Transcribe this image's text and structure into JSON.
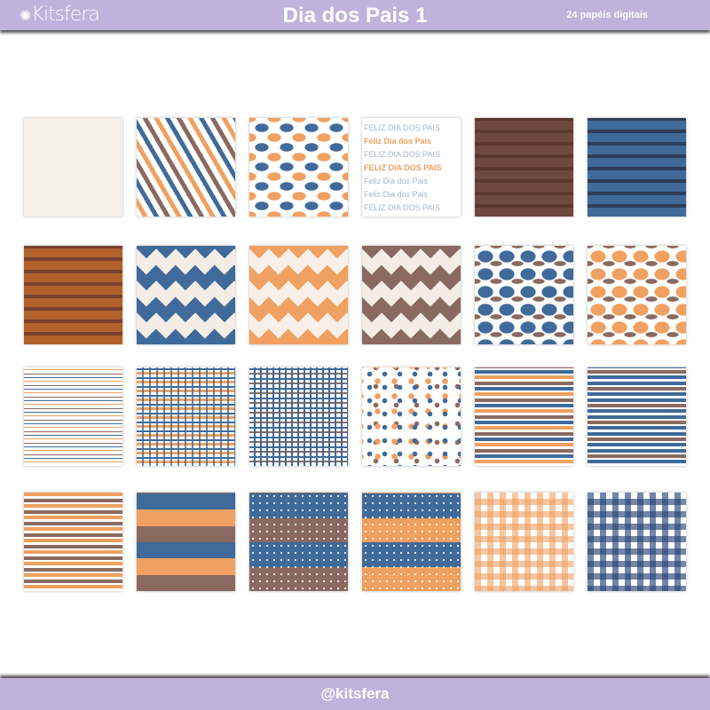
{
  "header": {
    "logo": "Kitsfera",
    "title": "Dia dos Pais 1",
    "subtitle": "24 papéis digitais"
  },
  "footer": {
    "handle": "@kitsfera"
  },
  "colors": {
    "banner": "#c0b2da",
    "orange": "#f0a060",
    "blue": "#3f6a9a",
    "brown": "#8a6a60"
  },
  "tile_text": {
    "phrase_caps": "FELIZ DIA DOS PAIS",
    "phrase": "Feliz Dia dos Pais"
  }
}
